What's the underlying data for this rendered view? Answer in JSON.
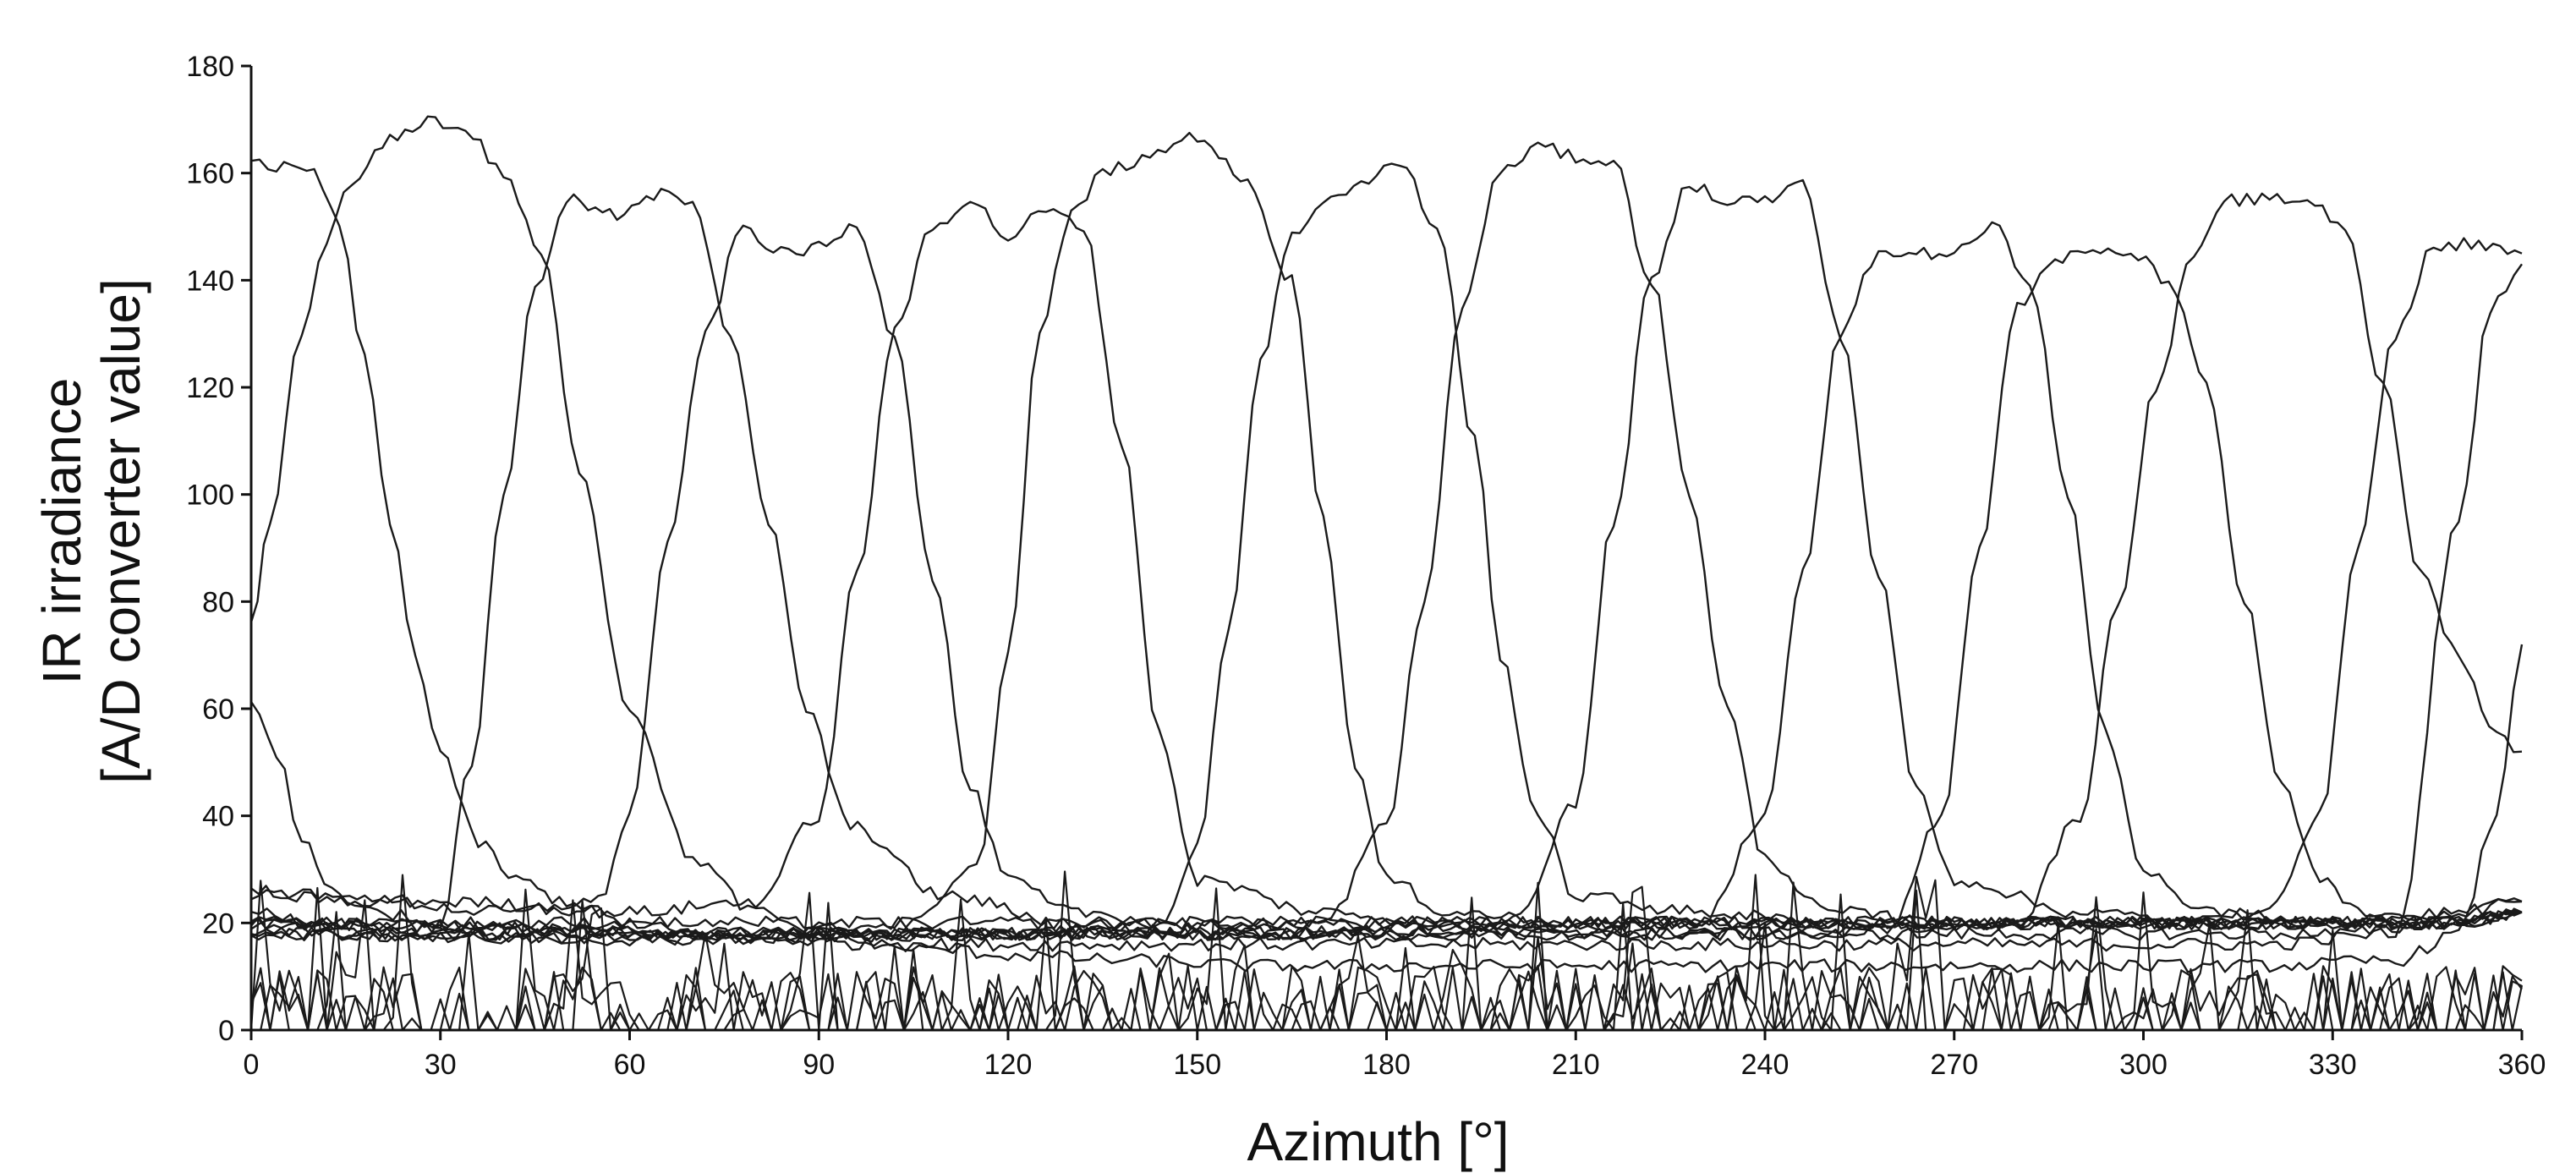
{
  "chart_data": {
    "type": "line",
    "xlabel": "Azimuth [°]",
    "ylabel_lines": [
      "IR irradiance",
      "[A/D converter value]"
    ],
    "xlim": [
      0,
      360
    ],
    "ylim": [
      0,
      180
    ],
    "xticks": [
      0,
      30,
      60,
      90,
      120,
      150,
      180,
      210,
      240,
      270,
      300,
      330,
      360
    ],
    "yticks": [
      0,
      20,
      40,
      60,
      80,
      100,
      120,
      140,
      160,
      180
    ],
    "grid": false,
    "legend": "none",
    "line_color": "#1a1a1a",
    "series": [
      {
        "x": [
          0,
          3,
          8,
          12,
          16,
          22,
          28,
          34,
          40,
          46,
          52,
          60,
          70,
          80,
          90,
          100,
          110,
          120,
          140,
          160,
          180,
          200,
          220,
          240,
          260,
          280,
          300,
          320,
          340,
          350,
          356,
          360
        ],
        "y": [
          75,
          95,
          130,
          148,
          158,
          166,
          170,
          168,
          160,
          145,
          105,
          60,
          32,
          22,
          18,
          16,
          15,
          14,
          13,
          12,
          12,
          12,
          12,
          12,
          12,
          12,
          12,
          12,
          13,
          18,
          40,
          72
        ]
      },
      {
        "x": [
          0,
          4,
          10,
          14,
          18,
          22,
          26,
          30,
          36,
          42,
          50,
          60,
          70,
          80,
          100,
          120,
          140,
          160,
          180,
          200,
          220,
          240,
          260,
          280,
          300,
          320,
          340,
          350,
          355,
          360
        ],
        "y": [
          163,
          161,
          160,
          150,
          125,
          95,
          70,
          52,
          35,
          28,
          24,
          20,
          18,
          17,
          16,
          16,
          16,
          16,
          16,
          16,
          16,
          16,
          16,
          16,
          16,
          16,
          18,
          95,
          135,
          143
        ]
      },
      {
        "x": [
          0,
          10,
          20,
          30,
          35,
          40,
          45,
          50,
          58,
          65,
          70,
          76,
          82,
          88,
          95,
          110,
          130,
          150,
          170,
          190,
          210,
          230,
          250,
          270,
          290,
          310,
          330,
          350,
          360
        ],
        "y": [
          22,
          20,
          18,
          20,
          50,
          100,
          138,
          155,
          152,
          156,
          155,
          130,
          95,
          60,
          38,
          25,
          20,
          18,
          18,
          18,
          18,
          18,
          18,
          18,
          18,
          18,
          18,
          20,
          22
        ]
      },
      {
        "x": [
          0,
          20,
          40,
          55,
          60,
          66,
          72,
          78,
          84,
          90,
          96,
          102,
          108,
          114,
          120,
          130,
          150,
          170,
          190,
          210,
          230,
          250,
          270,
          290,
          310,
          330,
          350,
          360
        ],
        "y": [
          26,
          24,
          22,
          24,
          40,
          90,
          130,
          150,
          145,
          146,
          150,
          130,
          85,
          45,
          28,
          22,
          20,
          20,
          20,
          20,
          20,
          20,
          20,
          20,
          20,
          20,
          22,
          24
        ]
      },
      {
        "x": [
          0,
          30,
          60,
          80,
          90,
          96,
          102,
          108,
          114,
          120,
          126,
          132,
          138,
          144,
          150,
          170,
          190,
          210,
          230,
          250,
          270,
          290,
          310,
          330,
          350,
          360
        ],
        "y": [
          25,
          24,
          22,
          24,
          40,
          85,
          130,
          150,
          155,
          148,
          153,
          150,
          110,
          55,
          28,
          22,
          20,
          20,
          20,
          20,
          20,
          20,
          20,
          20,
          22,
          24
        ]
      },
      {
        "x": [
          0,
          40,
          80,
          105,
          115,
          120,
          125,
          130,
          135,
          140,
          150,
          158,
          165,
          170,
          175,
          180,
          190,
          210,
          230,
          250,
          270,
          290,
          310,
          330,
          350,
          360
        ],
        "y": [
          20,
          18,
          18,
          20,
          30,
          70,
          130,
          152,
          160,
          162,
          167,
          158,
          140,
          95,
          50,
          28,
          22,
          20,
          20,
          20,
          20,
          20,
          20,
          20,
          20,
          22
        ]
      },
      {
        "x": [
          0,
          60,
          120,
          145,
          150,
          155,
          160,
          165,
          170,
          176,
          182,
          188,
          194,
          198,
          204,
          210,
          230,
          250,
          270,
          290,
          310,
          330,
          350,
          360
        ],
        "y": [
          18,
          17,
          18,
          20,
          35,
          75,
          125,
          148,
          155,
          158,
          162,
          150,
          110,
          70,
          40,
          25,
          22,
          20,
          20,
          20,
          20,
          20,
          20,
          22
        ]
      },
      {
        "x": [
          0,
          60,
          120,
          170,
          180,
          186,
          192,
          198,
          204,
          210,
          216,
          222,
          228,
          234,
          240,
          250,
          270,
          290,
          310,
          330,
          350,
          360
        ],
        "y": [
          18,
          17,
          18,
          20,
          38,
          80,
          135,
          160,
          165,
          163,
          162,
          140,
          100,
          60,
          32,
          22,
          20,
          20,
          20,
          20,
          20,
          22
        ]
      },
      {
        "x": [
          0,
          80,
          160,
          200,
          210,
          216,
          222,
          228,
          234,
          240,
          246,
          252,
          258,
          264,
          270,
          290,
          310,
          330,
          350,
          360
        ],
        "y": [
          20,
          18,
          18,
          20,
          42,
          95,
          140,
          158,
          155,
          155,
          158,
          130,
          85,
          45,
          28,
          22,
          20,
          20,
          20,
          22
        ]
      },
      {
        "x": [
          0,
          80,
          160,
          230,
          240,
          246,
          252,
          258,
          264,
          270,
          276,
          282,
          288,
          294,
          300,
          310,
          330,
          350,
          360
        ],
        "y": [
          20,
          18,
          18,
          20,
          40,
          85,
          130,
          145,
          145,
          145,
          150,
          140,
          100,
          55,
          30,
          22,
          20,
          20,
          22
        ]
      },
      {
        "x": [
          0,
          80,
          160,
          240,
          260,
          268,
          274,
          280,
          286,
          292,
          298,
          304,
          310,
          316,
          322,
          328,
          334,
          340,
          350,
          360
        ],
        "y": [
          18,
          18,
          18,
          18,
          20,
          40,
          90,
          135,
          144,
          145,
          145,
          140,
          120,
          80,
          45,
          28,
          22,
          20,
          20,
          22
        ]
      },
      {
        "x": [
          0,
          80,
          160,
          240,
          280,
          290,
          296,
          302,
          308,
          314,
          320,
          326,
          332,
          338,
          344,
          350,
          356,
          360
        ],
        "y": [
          20,
          18,
          18,
          18,
          20,
          40,
          80,
          120,
          145,
          155,
          155,
          155,
          150,
          120,
          85,
          70,
          55,
          52
        ]
      },
      {
        "x": [
          0,
          4,
          8,
          14,
          20,
          30,
          60,
          120,
          180,
          240,
          300,
          320,
          328,
          334,
          340,
          346,
          352,
          360
        ],
        "y": [
          62,
          52,
          35,
          25,
          22,
          20,
          20,
          20,
          20,
          20,
          20,
          22,
          40,
          90,
          130,
          146,
          147,
          145
        ]
      }
    ],
    "noise_band": {
      "y_min": 0,
      "y_max": 30,
      "description_values_range": [
        0,
        33
      ]
    }
  }
}
